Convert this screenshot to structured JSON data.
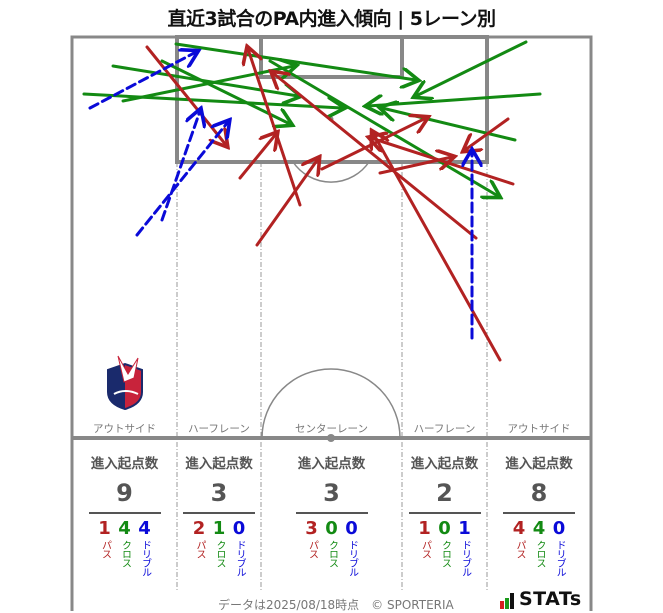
{
  "title": "直近3試合のPA内進入傾向 | 5レーン別",
  "colors": {
    "pass": "#b22222",
    "cross": "#138a13",
    "dribble": "#0a0ad8",
    "pitch_line": "#888888",
    "text_gray": "#555555"
  },
  "lanes": [
    {
      "label": "アウトサイド",
      "total": "9",
      "pass": "1",
      "cross": "4",
      "dribble": "4"
    },
    {
      "label": "ハーフレーン",
      "total": "3",
      "pass": "2",
      "cross": "1",
      "dribble": "0"
    },
    {
      "label": "センターレーン",
      "total": "3",
      "pass": "3",
      "cross": "0",
      "dribble": "0"
    },
    {
      "label": "ハーフレーン",
      "total": "2",
      "pass": "1",
      "cross": "0",
      "dribble": "1"
    },
    {
      "label": "アウトサイド",
      "total": "8",
      "pass": "4",
      "cross": "4",
      "dribble": "0"
    }
  ],
  "stat_header": "進入起点数",
  "legend": {
    "pass": "パス",
    "cross": "クロス",
    "dribble": "ドリブル"
  },
  "footer": "データは2025/08/18時点　© SPORTERIA",
  "brand": "STATs",
  "crest_icon": "club-crest-icon",
  "chart_data": {
    "type": "diagram-arrows",
    "title": "直近3試合のPA内進入傾向 | 5レーン別",
    "lane_labels": [
      "アウトサイド",
      "ハーフレーン",
      "センターレーン",
      "ハーフレーン",
      "アウトサイド"
    ],
    "categories": [
      "アウトサイド(左)",
      "ハーフレーン(左)",
      "センターレーン",
      "ハーフレーン(右)",
      "アウトサイド(右)"
    ],
    "series": [
      {
        "name": "パス",
        "values": [
          1,
          2,
          3,
          1,
          4
        ]
      },
      {
        "name": "クロス",
        "values": [
          4,
          1,
          0,
          0,
          4
        ]
      },
      {
        "name": "ドリブル",
        "values": [
          4,
          0,
          0,
          1,
          0
        ]
      }
    ],
    "totals": [
      9,
      3,
      3,
      2,
      8
    ],
    "arrows": [
      {
        "type": "cross",
        "from": [
          176,
          44
        ],
        "to": [
          416,
          80
        ]
      },
      {
        "type": "cross",
        "from": [
          113,
          66
        ],
        "to": [
          298,
          96
        ]
      },
      {
        "type": "cross",
        "from": [
          84,
          94
        ],
        "to": [
          342,
          108
        ]
      },
      {
        "type": "cross",
        "from": [
          123,
          101
        ],
        "to": [
          294,
          66
        ]
      },
      {
        "type": "cross",
        "from": [
          162,
          61
        ],
        "to": [
          290,
          124
        ]
      },
      {
        "type": "cross",
        "from": [
          526,
          42
        ],
        "to": [
          416,
          96
        ]
      },
      {
        "type": "cross",
        "from": [
          540,
          94
        ],
        "to": [
          368,
          106
        ]
      },
      {
        "type": "cross",
        "from": [
          515,
          140
        ],
        "to": [
          382,
          108
        ]
      },
      {
        "type": "cross",
        "from": [
          270,
          61
        ],
        "to": [
          498,
          196
        ]
      },
      {
        "type": "pass",
        "from": [
          147,
          47
        ],
        "to": [
          226,
          145
        ]
      },
      {
        "type": "pass",
        "from": [
          300,
          205
        ],
        "to": [
          248,
          49
        ]
      },
      {
        "type": "pass",
        "from": [
          240,
          178
        ],
        "to": [
          276,
          134
        ]
      },
      {
        "type": "pass",
        "from": [
          257,
          245
        ],
        "to": [
          318,
          159
        ]
      },
      {
        "type": "pass",
        "from": [
          322,
          169
        ],
        "to": [
          426,
          118
        ]
      },
      {
        "type": "pass",
        "from": [
          476,
          238
        ],
        "to": [
          273,
          73
        ]
      },
      {
        "type": "pass",
        "from": [
          500,
          360
        ],
        "to": [
          373,
          133
        ]
      },
      {
        "type": "pass",
        "from": [
          513,
          184
        ],
        "to": [
          371,
          138
        ]
      },
      {
        "type": "pass",
        "from": [
          508,
          119
        ],
        "to": [
          465,
          150
        ]
      },
      {
        "type": "pass",
        "from": [
          380,
          173
        ],
        "to": [
          452,
          157
        ]
      },
      {
        "type": "dribble",
        "from": [
          90,
          108
        ],
        "to": [
          196,
          52
        ]
      },
      {
        "type": "dribble",
        "from": [
          137,
          235
        ],
        "to": [
          228,
          122
        ]
      },
      {
        "type": "dribble",
        "from": [
          162,
          220
        ],
        "to": [
          200,
          111
        ]
      },
      {
        "type": "dribble",
        "from": [
          472,
          338
        ],
        "to": [
          472,
          152
        ]
      }
    ]
  }
}
